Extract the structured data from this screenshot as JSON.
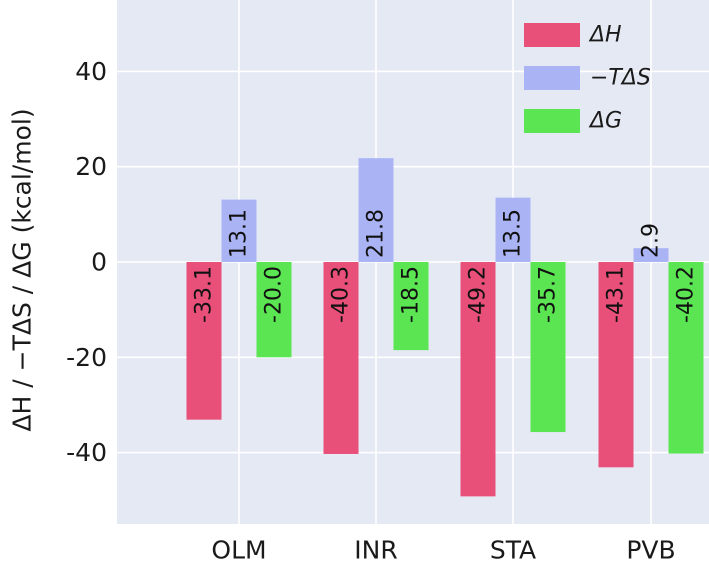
{
  "chart_data": {
    "type": "bar",
    "title": "",
    "xlabel": "",
    "ylabel": "ΔH / −TΔS / ΔG (kcal/mol)",
    "categories": [
      "OLM",
      "INR",
      "STA",
      "PVB"
    ],
    "series": [
      {
        "name": "ΔH",
        "color": "#e8507a",
        "values": [
          -33.1,
          -40.3,
          -49.2,
          -43.1
        ],
        "labels": [
          "-33.1",
          "-40.3",
          "-49.2",
          "-43.1"
        ]
      },
      {
        "name": "−TΔS",
        "color": "#aab4f4",
        "values": [
          13.1,
          21.8,
          13.5,
          2.9
        ],
        "labels": [
          "13.1",
          "21.8",
          "13.5",
          "2.9"
        ]
      },
      {
        "name": "ΔG",
        "color": "#5ce552",
        "values": [
          -20.0,
          -18.5,
          -35.7,
          -40.2
        ],
        "labels": [
          "-20.0",
          "-18.5",
          "-35.7",
          "-40.2"
        ]
      }
    ],
    "ylim": [
      -55,
      55
    ],
    "yticks": [
      -40,
      -20,
      0,
      20,
      40
    ],
    "ytick_labels": [
      "-40",
      "-20",
      "0",
      "20",
      "40"
    ],
    "grid": true,
    "legend_position": "top-right",
    "background": "#e5e9f4",
    "grid_color": "#ffffff"
  }
}
